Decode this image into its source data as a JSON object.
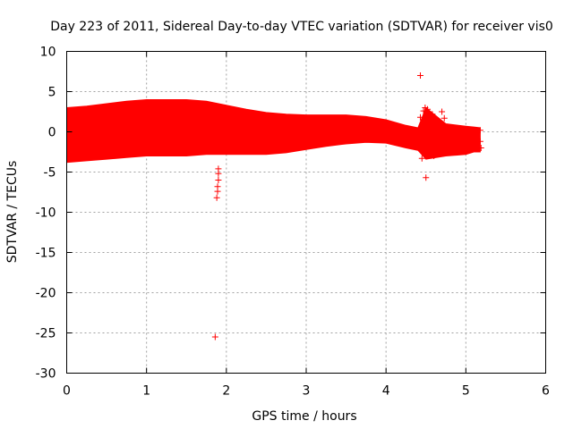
{
  "chart_data": {
    "type": "scatter",
    "title": "Day 223 of 2011, Sidereal Day-to-day VTEC variation (SDTVAR) for receiver vis0",
    "xlabel": "GPS time / hours",
    "ylabel": "SDTVAR / TECUs",
    "xlim": [
      0,
      6
    ],
    "ylim": [
      -30,
      10
    ],
    "xticks": [
      0,
      1,
      2,
      3,
      4,
      5,
      6
    ],
    "yticks": [
      10,
      5,
      0,
      -5,
      -10,
      -15,
      -20,
      -25,
      -30
    ],
    "grid": true,
    "marker": "+",
    "color": "#ff0000",
    "band": {
      "name": "SDTVAR (dense band)",
      "x": [
        0.0,
        0.25,
        0.5,
        0.75,
        1.0,
        1.25,
        1.5,
        1.75,
        2.0,
        2.25,
        2.5,
        2.75,
        3.0,
        3.25,
        3.5,
        3.75,
        4.0,
        4.25,
        4.4,
        4.5,
        4.75,
        5.0,
        5.1,
        5.18
      ],
      "upper": [
        3.0,
        3.2,
        3.5,
        3.8,
        4.0,
        4.0,
        4.0,
        3.8,
        3.3,
        2.8,
        2.4,
        2.2,
        2.1,
        2.1,
        2.1,
        1.9,
        1.5,
        0.8,
        0.5,
        3.0,
        1.0,
        0.7,
        0.6,
        0.5
      ],
      "lower": [
        -3.8,
        -3.6,
        -3.4,
        -3.2,
        -3.0,
        -3.0,
        -3.0,
        -2.8,
        -2.8,
        -2.8,
        -2.8,
        -2.6,
        -2.2,
        -1.8,
        -1.5,
        -1.3,
        -1.4,
        -2.0,
        -2.3,
        -3.4,
        -3.0,
        -2.8,
        -2.5,
        -2.5
      ]
    },
    "outliers": [
      {
        "x": 1.86,
        "y": -25.5
      },
      {
        "x": 1.88,
        "y": -8.2
      },
      {
        "x": 1.89,
        "y": -7.4
      },
      {
        "x": 1.89,
        "y": -6.8
      },
      {
        "x": 1.9,
        "y": -6.0
      },
      {
        "x": 1.9,
        "y": -5.2
      },
      {
        "x": 1.9,
        "y": -4.6
      },
      {
        "x": 4.43,
        "y": 7.0
      },
      {
        "x": 4.5,
        "y": -5.7
      },
      {
        "x": 4.43,
        "y": 1.8
      },
      {
        "x": 4.47,
        "y": 2.6
      },
      {
        "x": 4.49,
        "y": 3.0
      },
      {
        "x": 4.52,
        "y": 2.8
      },
      {
        "x": 4.4,
        "y": -1.5
      },
      {
        "x": 4.45,
        "y": -3.3
      },
      {
        "x": 4.58,
        "y": 2.2
      },
      {
        "x": 4.62,
        "y": 1.6
      },
      {
        "x": 4.7,
        "y": 2.5
      },
      {
        "x": 4.73,
        "y": 1.7
      },
      {
        "x": 4.6,
        "y": -3.0
      },
      {
        "x": 5.18,
        "y": 0.2
      },
      {
        "x": 5.18,
        "y": -1.2
      },
      {
        "x": 5.19,
        "y": -2.0
      }
    ]
  }
}
